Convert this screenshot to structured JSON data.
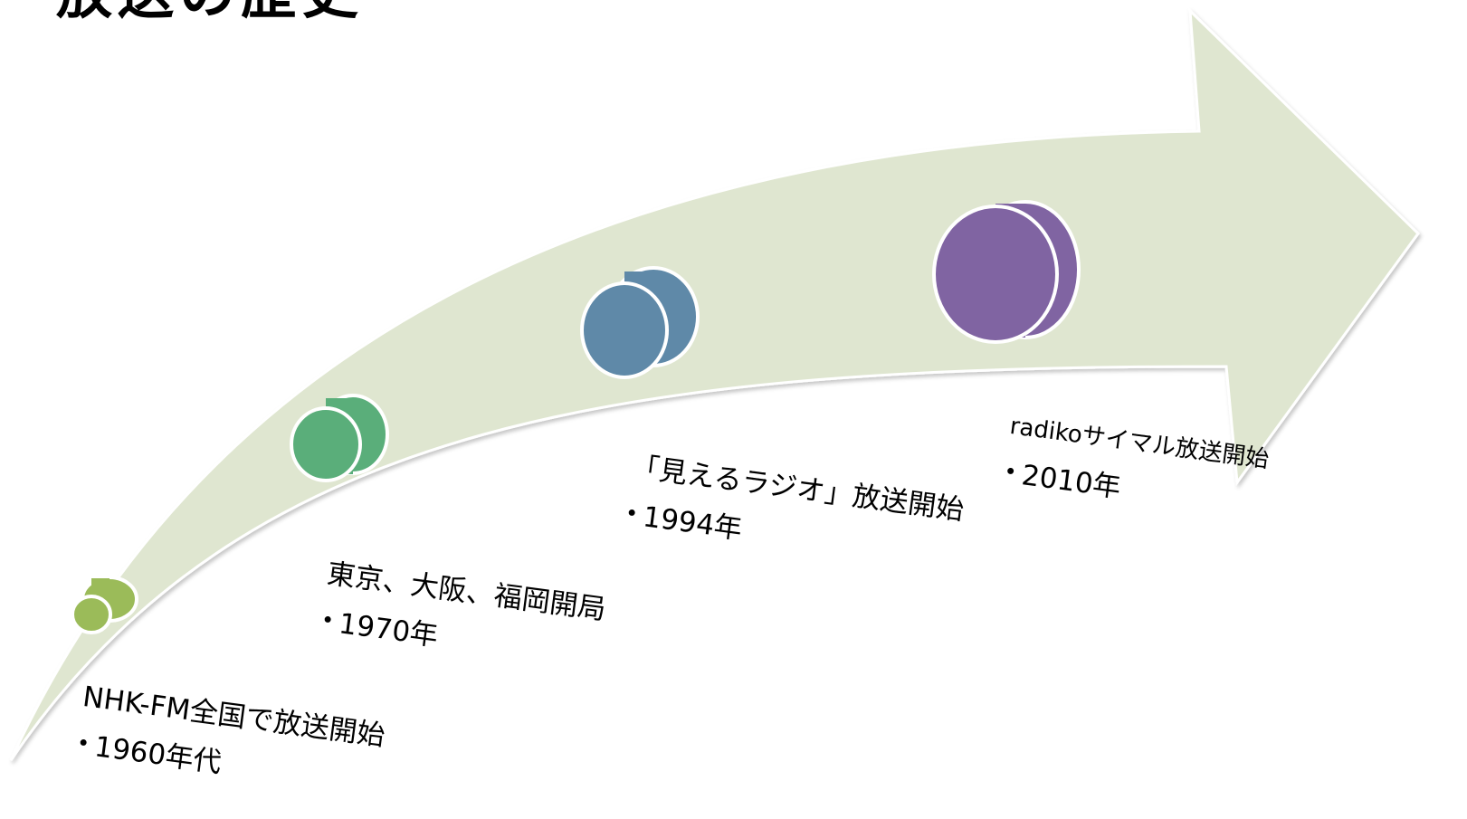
{
  "page": {
    "title": "放送の歴史"
  },
  "colors": {
    "arrow_fill": "#dfe6d0",
    "arrow_stroke": "#ffffff",
    "milestone_1": "#9bbb59",
    "milestone_2": "#5aae7a",
    "milestone_3": "#5f89a8",
    "milestone_4": "#8064a2"
  },
  "milestones": [
    {
      "label": "NHK-FM全国で放送開始",
      "year": "1960年代",
      "color": "#9bbb59"
    },
    {
      "label": "東京、大阪、福岡開局",
      "year": "1970年",
      "color": "#5aae7a"
    },
    {
      "label": "「見えるラジオ」放送開始",
      "year": "1994年",
      "color": "#5f89a8"
    },
    {
      "label": "radikoサイマル放送開始",
      "year": "2010年",
      "color": "#8064a2"
    }
  ]
}
